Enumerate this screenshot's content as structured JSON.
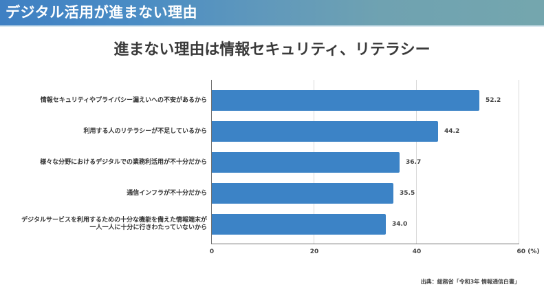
{
  "header": {
    "title": "デジタル活用が進まない理由"
  },
  "chart_data": {
    "type": "bar",
    "orientation": "horizontal",
    "title": "進まない理由は情報セキュリティ、リテラシー",
    "categories": [
      "情報セキュリティやプライバシー漏えいへの不安があるから",
      "利用する人のリテラシーが不足しているから",
      "様々な分野におけるデジタルでの業務利活用が不十分だから",
      "通信インフラが不十分だから",
      "デジタルサービスを利用するための十分な機能を備えた情報端末が\n一人一人に十分に行きわたっていないから"
    ],
    "values": [
      52.2,
      44.2,
      36.7,
      35.5,
      34.0
    ],
    "value_labels": [
      "52.2",
      "44.2",
      "36.7",
      "35.5",
      "34.0"
    ],
    "xlabel": "(%)",
    "ylabel": "",
    "xlim": [
      0,
      60
    ],
    "xticks": [
      "0",
      "20",
      "40",
      "60"
    ],
    "x_unit_label": "(%)",
    "grid": true,
    "bar_color": "#3c83c6",
    "legend": null
  },
  "labels": {
    "cat0": "情報セキュリティやプライバシー漏えいへの不安があるから",
    "cat1": "利用する人のリテラシーが不足しているから",
    "cat2": "様々な分野におけるデジタルでの業務利活用が不十分だから",
    "cat3": "通信インフラが不十分だから",
    "cat4_line1": "デジタルサービスを利用するための十分な機能を備えた情報端末が",
    "cat4_line2": "一人一人に十分に行きわたっていないから"
  },
  "axis": {
    "tick0": "0",
    "tick1": "20",
    "tick2": "40",
    "tick3": "60 (%)"
  },
  "source": "出典：総務省「令和3年 情報通信白書」"
}
